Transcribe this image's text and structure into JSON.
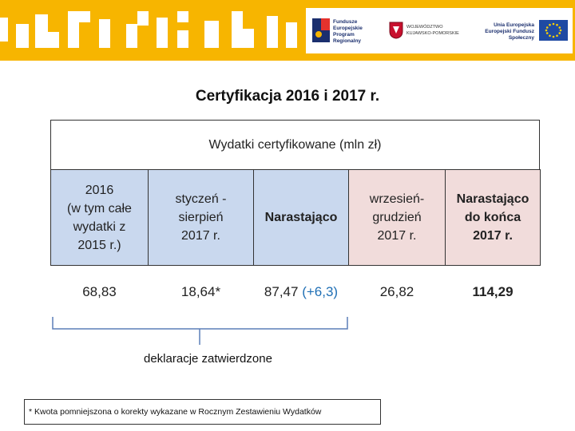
{
  "banner": {
    "logo_fe_text": "Fundusze\nEuropejskie\nProgram Regionalny",
    "logo_region_text": "WOJEWÓDZTWO\nKUJAWSKO-POMORSKIE",
    "logo_eu_text": "Unia Europejska\nEuropejski Fundusz Społeczny",
    "colors": {
      "banner": "#f7b500",
      "eu_flag": "#1f4aa3"
    }
  },
  "title": "Certyfikacja 2016 i 2017 r.",
  "table": {
    "header": "Wydatki certyfikowane (mln zł)",
    "columns": [
      {
        "label": "2016\n(w tym całe\nwydatki z\n2015 r.)",
        "value": "68,83"
      },
      {
        "label": "styczeń -\nsierpień\n2017 r.",
        "value": "18,64*"
      },
      {
        "label": "Narastająco",
        "value": "87,47",
        "value_extra": "(+6,3)"
      },
      {
        "label": "wrzesień-\ngrudzień\n2017 r.",
        "value": "26,82"
      },
      {
        "label": "Narastająco\ndo końca\n2017 r.",
        "value": "114,29"
      }
    ]
  },
  "bracket_label": "deklaracje zatwierdzone",
  "footnote": "* Kwota pomniejszona o korekty wykazane w Rocznym Zestawieniu Wydatków"
}
